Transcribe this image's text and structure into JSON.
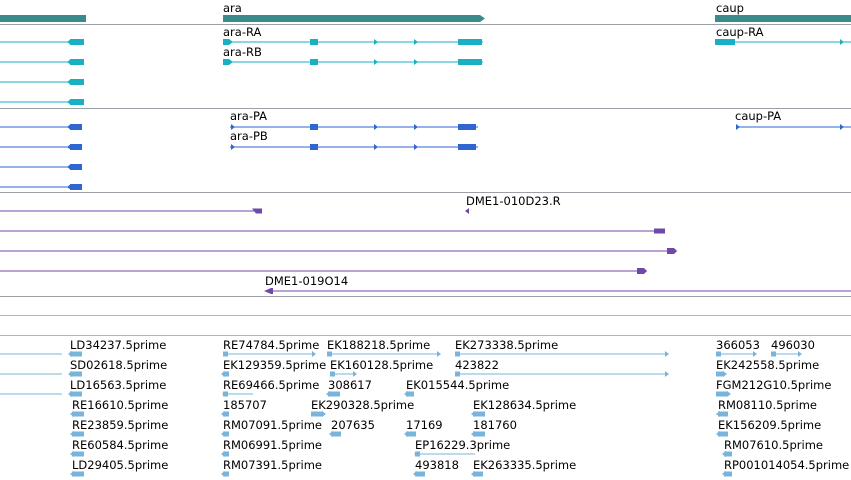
{
  "colors": {
    "gene": "#3a8c8c",
    "transcript": "#1ab0c4",
    "protein": "#2f66d0",
    "cdna": "#7049a8",
    "est": "#7ab4dc",
    "divider": "#9aa0a6",
    "blue_divider": "#8fbfdc"
  },
  "genes": [
    {
      "name": "ara"
    },
    {
      "name": "caup"
    }
  ],
  "transcripts": [
    {
      "name": "ara-RA"
    },
    {
      "name": "ara-RB"
    },
    {
      "name": "caup-RA"
    }
  ],
  "proteins": [
    {
      "name": "ara-PA"
    },
    {
      "name": "ara-PB"
    },
    {
      "name": "caup-PA"
    }
  ],
  "cdnas": [
    {
      "name": "DME1-010D23.R"
    },
    {
      "name": "DME1-019O14"
    }
  ],
  "ests": [
    {
      "name": "LD34237.5prime"
    },
    {
      "name": "SD02618.5prime"
    },
    {
      "name": "LD16563.5prime"
    },
    {
      "name": "RE16610.5prime"
    },
    {
      "name": "RE23859.5prime"
    },
    {
      "name": "RE60584.5prime"
    },
    {
      "name": "LD29405.5prime"
    },
    {
      "name": "RE74784.5prime"
    },
    {
      "name": "EK188218.5prime"
    },
    {
      "name": "EK129359.5prime"
    },
    {
      "name": "EK160128.5prime"
    },
    {
      "name": "RE69466.5prime"
    },
    {
      "name": "308617"
    },
    {
      "name": "EK015544.5prime"
    },
    {
      "name": "185707"
    },
    {
      "name": "EK290328.5prime"
    },
    {
      "name": "RM07091.5prime"
    },
    {
      "name": "207635"
    },
    {
      "name": "17169"
    },
    {
      "name": "RM06991.5prime"
    },
    {
      "name": "RM07391.5prime"
    },
    {
      "name": "EK273338.5prime"
    },
    {
      "name": "423822"
    },
    {
      "name": "EK128634.5prime"
    },
    {
      "name": "181760"
    },
    {
      "name": "EP16229.3prime"
    },
    {
      "name": "493818"
    },
    {
      "name": "EK263335.5prime"
    },
    {
      "name": "366053"
    },
    {
      "name": "496030"
    },
    {
      "name": "EK242558.5prime"
    },
    {
      "name": "FGM212G10.5prime"
    },
    {
      "name": "RM08110.5prime"
    },
    {
      "name": "EK156209.5prime"
    },
    {
      "name": "RM07610.5prime"
    },
    {
      "name": "RP001014054.5prime"
    }
  ]
}
